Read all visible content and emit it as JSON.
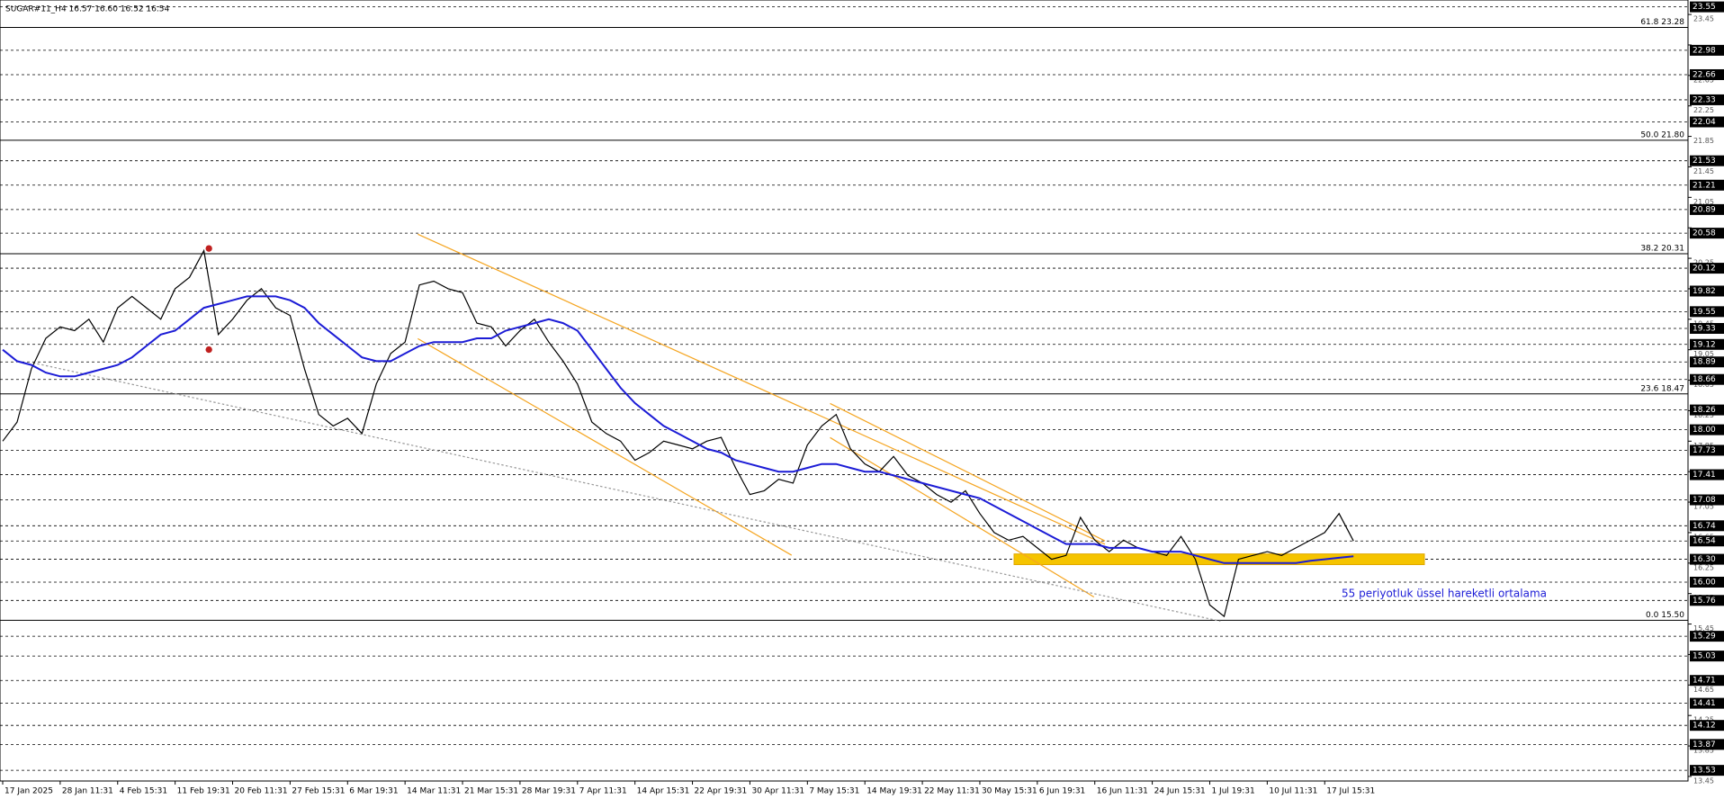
{
  "chart_data": {
    "type": "line",
    "title": "SUGAR#11_H4  16.57 16.60 16.52 16.54",
    "categories": [
      "17 Jan 2025",
      null,
      null,
      null,
      "28 Jan 11:31",
      null,
      null,
      null,
      "4 Feb 15:31",
      null,
      null,
      null,
      "11 Feb 19:31",
      null,
      null,
      null,
      "20 Feb 11:31",
      null,
      null,
      null,
      "27 Feb 15:31",
      null,
      null,
      null,
      "6 Mar 19:31",
      null,
      null,
      null,
      "14 Mar 11:31",
      null,
      null,
      null,
      "21 Mar 15:31",
      null,
      null,
      null,
      "28 Mar 19:31",
      null,
      null,
      null,
      "7 Apr 11:31",
      null,
      null,
      null,
      "14 Apr 15:31",
      null,
      null,
      null,
      "22 Apr 19:31",
      null,
      null,
      null,
      "30 Apr 11:31",
      null,
      null,
      null,
      "7 May 15:31",
      null,
      null,
      null,
      "14 May 19:31",
      null,
      null,
      null,
      "22 May 11:31",
      null,
      null,
      null,
      "30 May 15:31",
      null,
      null,
      null,
      "6 Jun 19:31",
      null,
      null,
      null,
      "16 Jun 11:31",
      null,
      null,
      null,
      "24 Jun 15:31",
      null,
      null,
      null,
      "1 Jul 19:31",
      null,
      null,
      null,
      "10 Jul 11:31",
      null,
      null,
      null,
      "17 Jul 15:31",
      null,
      null
    ],
    "series": [
      {
        "color": "#000000",
        "values": [
          17.85,
          18.1,
          18.8,
          19.2,
          19.35,
          19.3,
          19.45,
          19.15,
          19.6,
          19.75,
          19.6,
          19.45,
          19.85,
          20.0,
          20.35,
          19.25,
          19.45,
          19.7,
          19.85,
          19.6,
          19.5,
          18.8,
          18.2,
          18.05,
          18.15,
          17.95,
          18.6,
          19.0,
          19.15,
          19.9,
          19.95,
          19.85,
          19.8,
          19.4,
          19.35,
          19.1,
          19.3,
          19.45,
          19.15,
          18.9,
          18.6,
          18.1,
          17.95,
          17.85,
          17.6,
          17.7,
          17.85,
          17.8,
          17.75,
          17.85,
          17.9,
          17.5,
          17.15,
          17.2,
          17.35,
          17.3,
          17.8,
          18.05,
          18.2,
          17.75,
          17.55,
          17.45,
          17.65,
          17.4,
          17.3,
          17.15,
          17.05,
          17.2,
          16.9,
          16.65,
          16.55,
          16.6,
          16.45,
          16.3,
          16.35,
          16.85,
          16.55,
          16.4,
          16.55,
          16.45,
          16.4,
          16.35,
          16.6,
          16.3,
          15.7,
          15.55,
          16.3,
          16.35,
          16.4,
          16.35,
          16.45,
          16.55,
          16.65,
          16.9,
          16.54
        ]
      },
      {
        "name": "55 periyotluk üssel hareketli ortalama",
        "color": "#1c1cd6",
        "values": [
          19.05,
          18.9,
          18.85,
          18.75,
          18.7,
          18.7,
          18.75,
          18.8,
          18.85,
          18.95,
          19.1,
          19.25,
          19.3,
          19.45,
          19.6,
          19.65,
          19.7,
          19.75,
          19.75,
          19.75,
          19.7,
          19.6,
          19.4,
          19.25,
          19.1,
          18.95,
          18.9,
          18.9,
          19.0,
          19.1,
          19.15,
          19.15,
          19.15,
          19.2,
          19.2,
          19.3,
          19.35,
          19.4,
          19.45,
          19.4,
          19.3,
          19.05,
          18.8,
          18.55,
          18.35,
          18.2,
          18.05,
          17.95,
          17.85,
          17.75,
          17.7,
          17.6,
          17.55,
          17.5,
          17.45,
          17.45,
          17.5,
          17.55,
          17.55,
          17.5,
          17.45,
          17.45,
          17.4,
          17.35,
          17.3,
          17.25,
          17.2,
          17.15,
          17.1,
          17.0,
          16.9,
          16.8,
          16.7,
          16.6,
          16.5,
          16.5,
          16.5,
          16.45,
          16.45,
          16.45,
          16.4,
          16.4,
          16.4,
          16.35,
          16.3,
          16.25,
          16.25,
          16.25,
          16.25,
          16.25,
          16.25,
          16.28,
          16.3,
          16.32,
          16.34
        ]
      }
    ],
    "ylim": [
      13.39,
      23.64
    ],
    "yticks": [
      13.45,
      13.85,
      14.25,
      14.65,
      15.05,
      15.45,
      15.85,
      16.25,
      16.65,
      17.05,
      17.45,
      17.85,
      18.25,
      18.65,
      19.05,
      19.45,
      19.85,
      20.25,
      20.65,
      21.05,
      21.45,
      21.85,
      22.25,
      22.65,
      23.05,
      23.45
    ],
    "levels": [
      23.55,
      22.98,
      22.66,
      22.33,
      22.04,
      21.53,
      21.21,
      20.89,
      20.58,
      20.12,
      19.82,
      19.55,
      19.33,
      19.12,
      18.89,
      18.66,
      18.26,
      {
        "value": 18,
        "label": "18.00"
      },
      17.73,
      17.41,
      17.08,
      16.74,
      16.54,
      {
        "value": 16.3,
        "label": "16.30"
      },
      {
        "value": 16,
        "label": "16.00"
      },
      15.76,
      15.29,
      15.03,
      14.71,
      14.41,
      14.12,
      13.87,
      13.53
    ],
    "fib_levels": [
      {
        "value": 23.28,
        "label": "61.8 23.28"
      },
      {
        "value": 21.8,
        "label": "50.0 21.80"
      },
      {
        "value": 20.31,
        "label": "38.2 20.31"
      },
      {
        "value": 18.47,
        "label": "23.6 18.47"
      },
      {
        "value": 15.5,
        "label": "0.0 15.50"
      }
    ],
    "support_zone": [
      16.23,
      16.37
    ],
    "grid": true
  }
}
